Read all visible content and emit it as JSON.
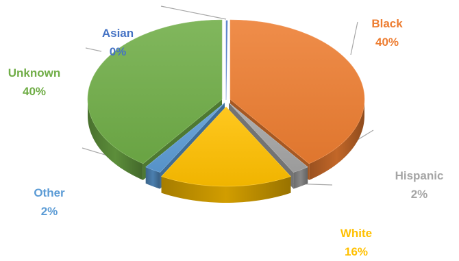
{
  "chart_data": {
    "type": "pie",
    "style": "3d-exploded-pie",
    "title": "",
    "legend": "none",
    "slices": [
      {
        "name": "Black",
        "percent_label": "40%",
        "value": 40,
        "color": "#ED7D31"
      },
      {
        "name": "Hispanic",
        "percent_label": "2%",
        "value": 2,
        "color": "#A5A5A5"
      },
      {
        "name": "White",
        "percent_label": "16%",
        "value": 16,
        "color": "#FFC000"
      },
      {
        "name": "Other",
        "percent_label": "2%",
        "value": 2,
        "color": "#5B9BD5"
      },
      {
        "name": "Unknown",
        "percent_label": "40%",
        "value": 40,
        "color": "#70AD47"
      },
      {
        "name": "Asian",
        "percent_label": "0%",
        "value": 0,
        "color": "#4472C4"
      }
    ]
  }
}
